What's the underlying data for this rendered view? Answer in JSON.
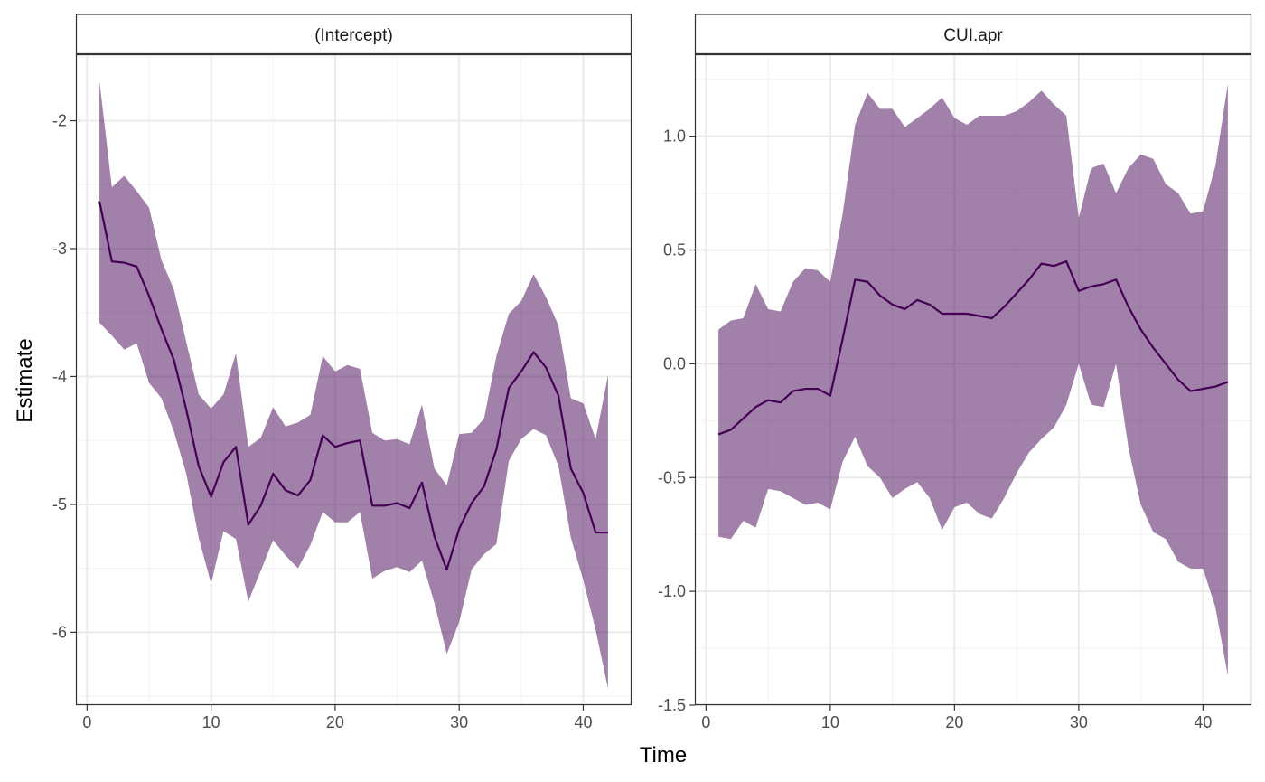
{
  "figure": {
    "xlabel": "Time",
    "ylabel": "Estimate"
  },
  "colors": {
    "ribbon": "#440154",
    "ribbon_opacity": 0.5,
    "line": "#440154",
    "strip_background": "#ffffff",
    "panel_border": "#333333",
    "grid_major": "#ebebeb",
    "grid_minor": "#f3f3f3"
  },
  "chart_data": [
    {
      "type": "area",
      "title": "(Intercept)",
      "xlabel": "Time",
      "ylabel": "Estimate",
      "xlim": [
        -0.9,
        43.9
      ],
      "ylim": [
        -6.57,
        -1.48
      ],
      "x_ticks": [
        0,
        10,
        20,
        30,
        40
      ],
      "x_tick_labels": [
        "0",
        "10",
        "20",
        "30",
        "40"
      ],
      "y_ticks": [
        -6,
        -5,
        -4,
        -3,
        -2
      ],
      "y_tick_labels": [
        "-6",
        "-5",
        "-4",
        "-3",
        "-2"
      ],
      "grid": true,
      "x": [
        1,
        2,
        3,
        4,
        5,
        6,
        7,
        8,
        9,
        10,
        11,
        12,
        13,
        14,
        15,
        16,
        17,
        18,
        19,
        20,
        21,
        22,
        23,
        24,
        25,
        26,
        27,
        28,
        29,
        30,
        31,
        32,
        33,
        34,
        35,
        36,
        37,
        38,
        39,
        40,
        41,
        42
      ],
      "series": [
        {
          "estimate": [
            -2.63,
            -3.1,
            -3.11,
            -3.14,
            -3.37,
            -3.63,
            -3.87,
            -4.26,
            -4.7,
            -4.94,
            -4.67,
            -4.55,
            -5.16,
            -5.01,
            -4.76,
            -4.89,
            -4.93,
            -4.81,
            -4.46,
            -4.55,
            -4.52,
            -4.5,
            -5.01,
            -5.01,
            -4.99,
            -5.03,
            -4.83,
            -5.25,
            -5.51,
            -5.19,
            -4.99,
            -4.86,
            -4.57,
            -4.09,
            -3.96,
            -3.81,
            -3.93,
            -4.15,
            -4.72,
            -4.91,
            -5.22,
            -5.22
          ],
          "lower": [
            -3.58,
            -3.68,
            -3.79,
            -3.74,
            -4.05,
            -4.17,
            -4.43,
            -4.76,
            -5.26,
            -5.62,
            -5.21,
            -5.27,
            -5.76,
            -5.52,
            -5.28,
            -5.4,
            -5.5,
            -5.32,
            -5.06,
            -5.14,
            -5.14,
            -5.06,
            -5.58,
            -5.52,
            -5.49,
            -5.53,
            -5.44,
            -5.77,
            -6.17,
            -5.92,
            -5.51,
            -5.39,
            -5.31,
            -4.66,
            -4.49,
            -4.41,
            -4.46,
            -4.7,
            -5.26,
            -5.59,
            -5.98,
            -6.44
          ],
          "upper": [
            -1.69,
            -2.52,
            -2.43,
            -2.55,
            -2.68,
            -3.09,
            -3.32,
            -3.73,
            -4.14,
            -4.25,
            -4.14,
            -3.82,
            -4.55,
            -4.48,
            -4.24,
            -4.39,
            -4.36,
            -4.3,
            -3.84,
            -3.96,
            -3.91,
            -3.94,
            -4.44,
            -4.5,
            -4.49,
            -4.53,
            -4.22,
            -4.72,
            -4.85,
            -4.45,
            -4.44,
            -4.33,
            -3.84,
            -3.51,
            -3.41,
            -3.2,
            -3.38,
            -3.6,
            -4.17,
            -4.21,
            -4.49,
            -3.99
          ]
        }
      ]
    },
    {
      "type": "area",
      "title": "CUI.apr",
      "xlabel": "Time",
      "ylabel": "Estimate",
      "xlim": [
        -0.9,
        43.9
      ],
      "ylim": [
        -1.5,
        1.36
      ],
      "x_ticks": [
        0,
        10,
        20,
        30,
        40
      ],
      "x_tick_labels": [
        "0",
        "10",
        "20",
        "30",
        "40"
      ],
      "y_ticks": [
        -1.5,
        -1.0,
        -0.5,
        0.0,
        0.5,
        1.0
      ],
      "y_tick_labels": [
        "-1.5",
        "-1.0",
        "-0.5",
        "0.0",
        "0.5",
        "1.0"
      ],
      "grid": true,
      "x": [
        1,
        2,
        3,
        4,
        5,
        6,
        7,
        8,
        9,
        10,
        11,
        12,
        13,
        14,
        15,
        16,
        17,
        18,
        19,
        20,
        21,
        22,
        23,
        24,
        25,
        26,
        27,
        28,
        29,
        30,
        31,
        32,
        33,
        34,
        35,
        36,
        37,
        38,
        39,
        40,
        41,
        42
      ],
      "series": [
        {
          "estimate": [
            -0.31,
            -0.29,
            -0.24,
            -0.19,
            -0.16,
            -0.17,
            -0.12,
            -0.11,
            -0.11,
            -0.14,
            0.11,
            0.37,
            0.36,
            0.3,
            0.26,
            0.24,
            0.28,
            0.26,
            0.22,
            0.22,
            0.22,
            0.21,
            0.2,
            0.25,
            0.31,
            0.37,
            0.44,
            0.43,
            0.45,
            0.32,
            0.34,
            0.35,
            0.37,
            0.25,
            0.15,
            0.07,
            0.0,
            -0.07,
            -0.12,
            -0.11,
            -0.1,
            -0.08
          ],
          "lower": [
            -0.76,
            -0.77,
            -0.69,
            -0.72,
            -0.55,
            -0.56,
            -0.59,
            -0.62,
            -0.61,
            -0.64,
            -0.43,
            -0.32,
            -0.45,
            -0.5,
            -0.59,
            -0.55,
            -0.52,
            -0.59,
            -0.73,
            -0.63,
            -0.61,
            -0.66,
            -0.68,
            -0.59,
            -0.48,
            -0.39,
            -0.33,
            -0.28,
            -0.18,
            0.0,
            -0.18,
            -0.19,
            0.0,
            -0.37,
            -0.62,
            -0.74,
            -0.77,
            -0.87,
            -0.9,
            -0.9,
            -1.07,
            -1.37
          ],
          "upper": [
            0.15,
            0.19,
            0.2,
            0.35,
            0.24,
            0.23,
            0.36,
            0.42,
            0.41,
            0.36,
            0.66,
            1.05,
            1.19,
            1.12,
            1.12,
            1.04,
            1.08,
            1.12,
            1.17,
            1.08,
            1.05,
            1.09,
            1.09,
            1.09,
            1.11,
            1.15,
            1.2,
            1.14,
            1.09,
            0.64,
            0.86,
            0.88,
            0.75,
            0.86,
            0.92,
            0.9,
            0.79,
            0.75,
            0.66,
            0.67,
            0.87,
            1.23
          ]
        }
      ]
    }
  ]
}
